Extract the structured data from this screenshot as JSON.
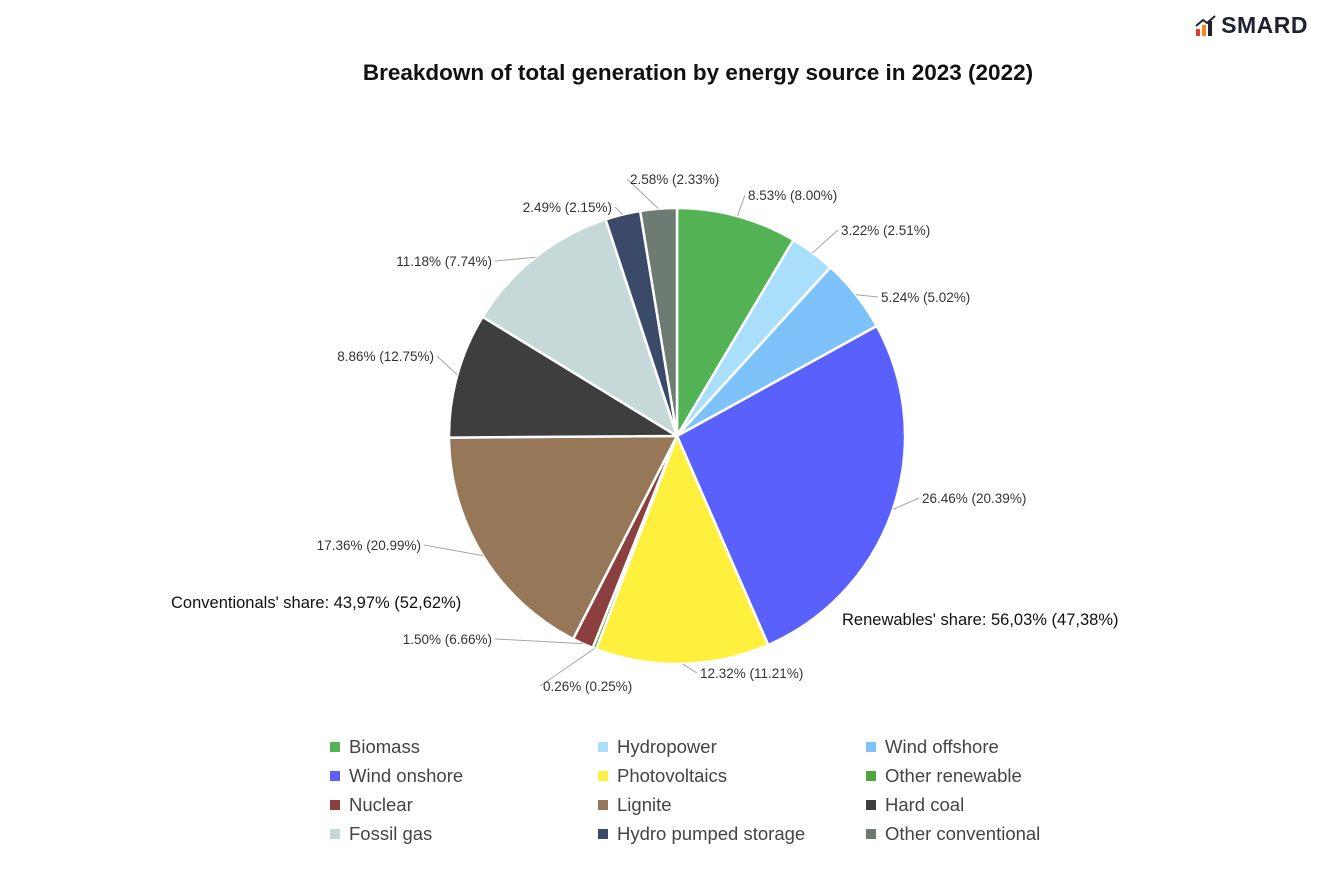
{
  "brand": {
    "name": "SMARD"
  },
  "chart_data": {
    "type": "pie",
    "title": "Breakdown of total generation by energy source in 2023 (2022)",
    "slices": [
      {
        "name": "Biomass",
        "value": 8.53,
        "prev": 8.0,
        "label": "8.53% (8.00%)",
        "color": "#53b253"
      },
      {
        "name": "Hydropower",
        "value": 3.22,
        "prev": 2.51,
        "label": "3.22% (2.51%)",
        "color": "#a9dffb"
      },
      {
        "name": "Wind offshore",
        "value": 5.24,
        "prev": 5.02,
        "label": "5.24% (5.02%)",
        "color": "#7dc2fb"
      },
      {
        "name": "Wind onshore",
        "value": 26.46,
        "prev": 20.39,
        "label": "26.46% (20.39%)",
        "color": "#5a60fc"
      },
      {
        "name": "Photovoltaics",
        "value": 12.32,
        "prev": 11.21,
        "label": "12.32% (11.21%)",
        "color": "#fff03d"
      },
      {
        "name": "Other renewable",
        "value": 0.26,
        "prev": 0.25,
        "label": "0.26% (0.25%)",
        "color": "#50a63a"
      },
      {
        "name": "Nuclear",
        "value": 1.5,
        "prev": 6.66,
        "label": "1.50% (6.66%)",
        "color": "#8c3f3f"
      },
      {
        "name": "Lignite",
        "value": 17.36,
        "prev": 20.99,
        "label": "17.36% (20.99%)",
        "color": "#967858"
      },
      {
        "name": "Hard coal",
        "value": 8.86,
        "prev": 12.75,
        "label": "8.86% (12.75%)",
        "color": "#3e3e3e"
      },
      {
        "name": "Fossil gas",
        "value": 11.18,
        "prev": 7.74,
        "label": "11.18% (7.74%)",
        "color": "#c5d9d8"
      },
      {
        "name": "Hydro pumped storage",
        "value": 2.49,
        "prev": 2.15,
        "label": "2.49% (2.15%)",
        "color": "#3c4a6a"
      },
      {
        "name": "Other conventional",
        "value": 2.58,
        "prev": 2.33,
        "label": "2.58% (2.33%)",
        "color": "#6e7b72"
      }
    ],
    "annotations": {
      "renewables": "Renewables' share: 56,03% (47,38%)",
      "conventionals": "Conventionals'  share: 43,97% (52,62%)"
    },
    "legend_position": "bottom"
  }
}
